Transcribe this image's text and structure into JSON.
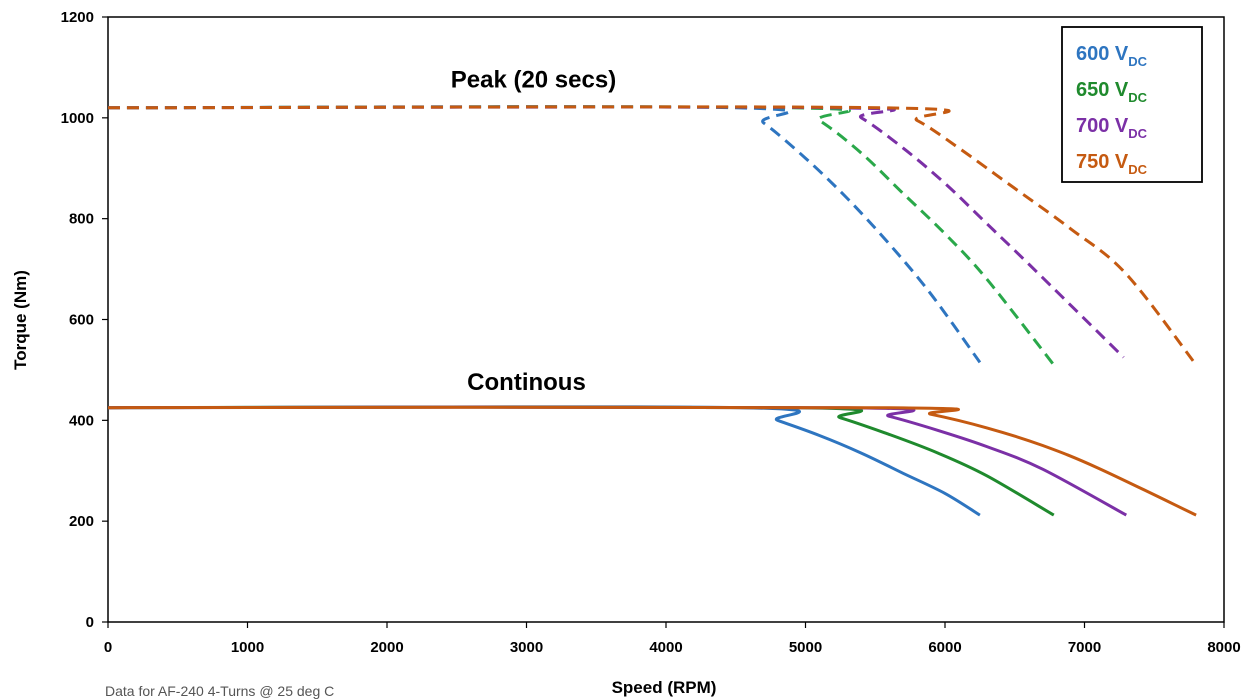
{
  "chart_data": {
    "type": "line",
    "xlabel": "Speed (RPM)",
    "ylabel": "Torque (Nm)",
    "xlim": [
      0,
      8000
    ],
    "ylim": [
      0,
      1200
    ],
    "x_ticks": [
      0,
      1000,
      2000,
      3000,
      4000,
      5000,
      6000,
      7000,
      8000
    ],
    "y_ticks": [
      0,
      200,
      400,
      600,
      800,
      1000,
      1200
    ],
    "grid": false,
    "legend_position": "top-right",
    "annotations": [
      {
        "text": "Peak (20 secs)",
        "x": 3050,
        "y": 1060
      },
      {
        "text": "Continous",
        "x": 3000,
        "y": 460
      }
    ],
    "series": [
      {
        "name": "600 V",
        "subscript": "DC",
        "color": "#2e75c0",
        "dash": true,
        "points": [
          [
            0,
            1020
          ],
          [
            4500,
            1020
          ],
          [
            4700,
            990
          ],
          [
            5000,
            920
          ],
          [
            5300,
            840
          ],
          [
            5600,
            750
          ],
          [
            5900,
            650
          ],
          [
            6250,
            515
          ]
        ]
      },
      {
        "name": "650 V",
        "subscript": "DC",
        "color": "#2aa84a",
        "dash": true,
        "points": [
          [
            0,
            1020
          ],
          [
            4900,
            1020
          ],
          [
            5100,
            995
          ],
          [
            5400,
            930
          ],
          [
            5700,
            850
          ],
          [
            6000,
            770
          ],
          [
            6300,
            680
          ],
          [
            6780,
            510
          ]
        ]
      },
      {
        "name": "700 V",
        "subscript": "DC",
        "color": "#7b30a6",
        "dash": true,
        "points": [
          [
            0,
            1020
          ],
          [
            5200,
            1020
          ],
          [
            5400,
            1000
          ],
          [
            5700,
            940
          ],
          [
            6000,
            870
          ],
          [
            6300,
            790
          ],
          [
            6600,
            710
          ],
          [
            7280,
            525
          ]
        ]
      },
      {
        "name": "750 V",
        "subscript": "DC",
        "color": "#c55a11",
        "dash": true,
        "points": [
          [
            0,
            1020
          ],
          [
            5550,
            1020
          ],
          [
            5800,
            995
          ],
          [
            6100,
            940
          ],
          [
            6500,
            860
          ],
          [
            6900,
            780
          ],
          [
            7300,
            690
          ],
          [
            7800,
            510
          ]
        ]
      },
      {
        "name": "600 V",
        "subscript": "DC",
        "color": "#2e75c0",
        "dash": false,
        "points": [
          [
            0,
            425
          ],
          [
            4550,
            425
          ],
          [
            4800,
            400
          ],
          [
            5100,
            370
          ],
          [
            5400,
            335
          ],
          [
            5700,
            295
          ],
          [
            6000,
            255
          ],
          [
            6250,
            212
          ]
        ]
      },
      {
        "name": "650 V",
        "subscript": "DC",
        "color": "#1f8a2d",
        "dash": false,
        "points": [
          [
            0,
            425
          ],
          [
            4950,
            425
          ],
          [
            5250,
            405
          ],
          [
            5600,
            372
          ],
          [
            5950,
            335
          ],
          [
            6300,
            290
          ],
          [
            6780,
            212
          ]
        ]
      },
      {
        "name": "700 V",
        "subscript": "DC",
        "color": "#7b30a6",
        "dash": false,
        "points": [
          [
            0,
            425
          ],
          [
            5300,
            425
          ],
          [
            5600,
            408
          ],
          [
            5950,
            380
          ],
          [
            6300,
            348
          ],
          [
            6700,
            303
          ],
          [
            7300,
            212
          ]
        ]
      },
      {
        "name": "750 V",
        "subscript": "DC",
        "color": "#c55a11",
        "dash": false,
        "points": [
          [
            0,
            425
          ],
          [
            5600,
            425
          ],
          [
            5900,
            412
          ],
          [
            6300,
            385
          ],
          [
            6700,
            350
          ],
          [
            7100,
            305
          ],
          [
            7800,
            212
          ]
        ]
      }
    ],
    "legend": [
      {
        "label": "600 V",
        "sub": "DC",
        "color": "#2e75c0"
      },
      {
        "label": "650 V",
        "sub": "DC",
        "color": "#1f8a2d"
      },
      {
        "label": "700 V",
        "sub": "DC",
        "color": "#7b30a6"
      },
      {
        "label": "750 V",
        "sub": "DC",
        "color": "#c55a11"
      }
    ]
  },
  "footnote": "Data for AF-240 4-Turns @ 25 deg C"
}
